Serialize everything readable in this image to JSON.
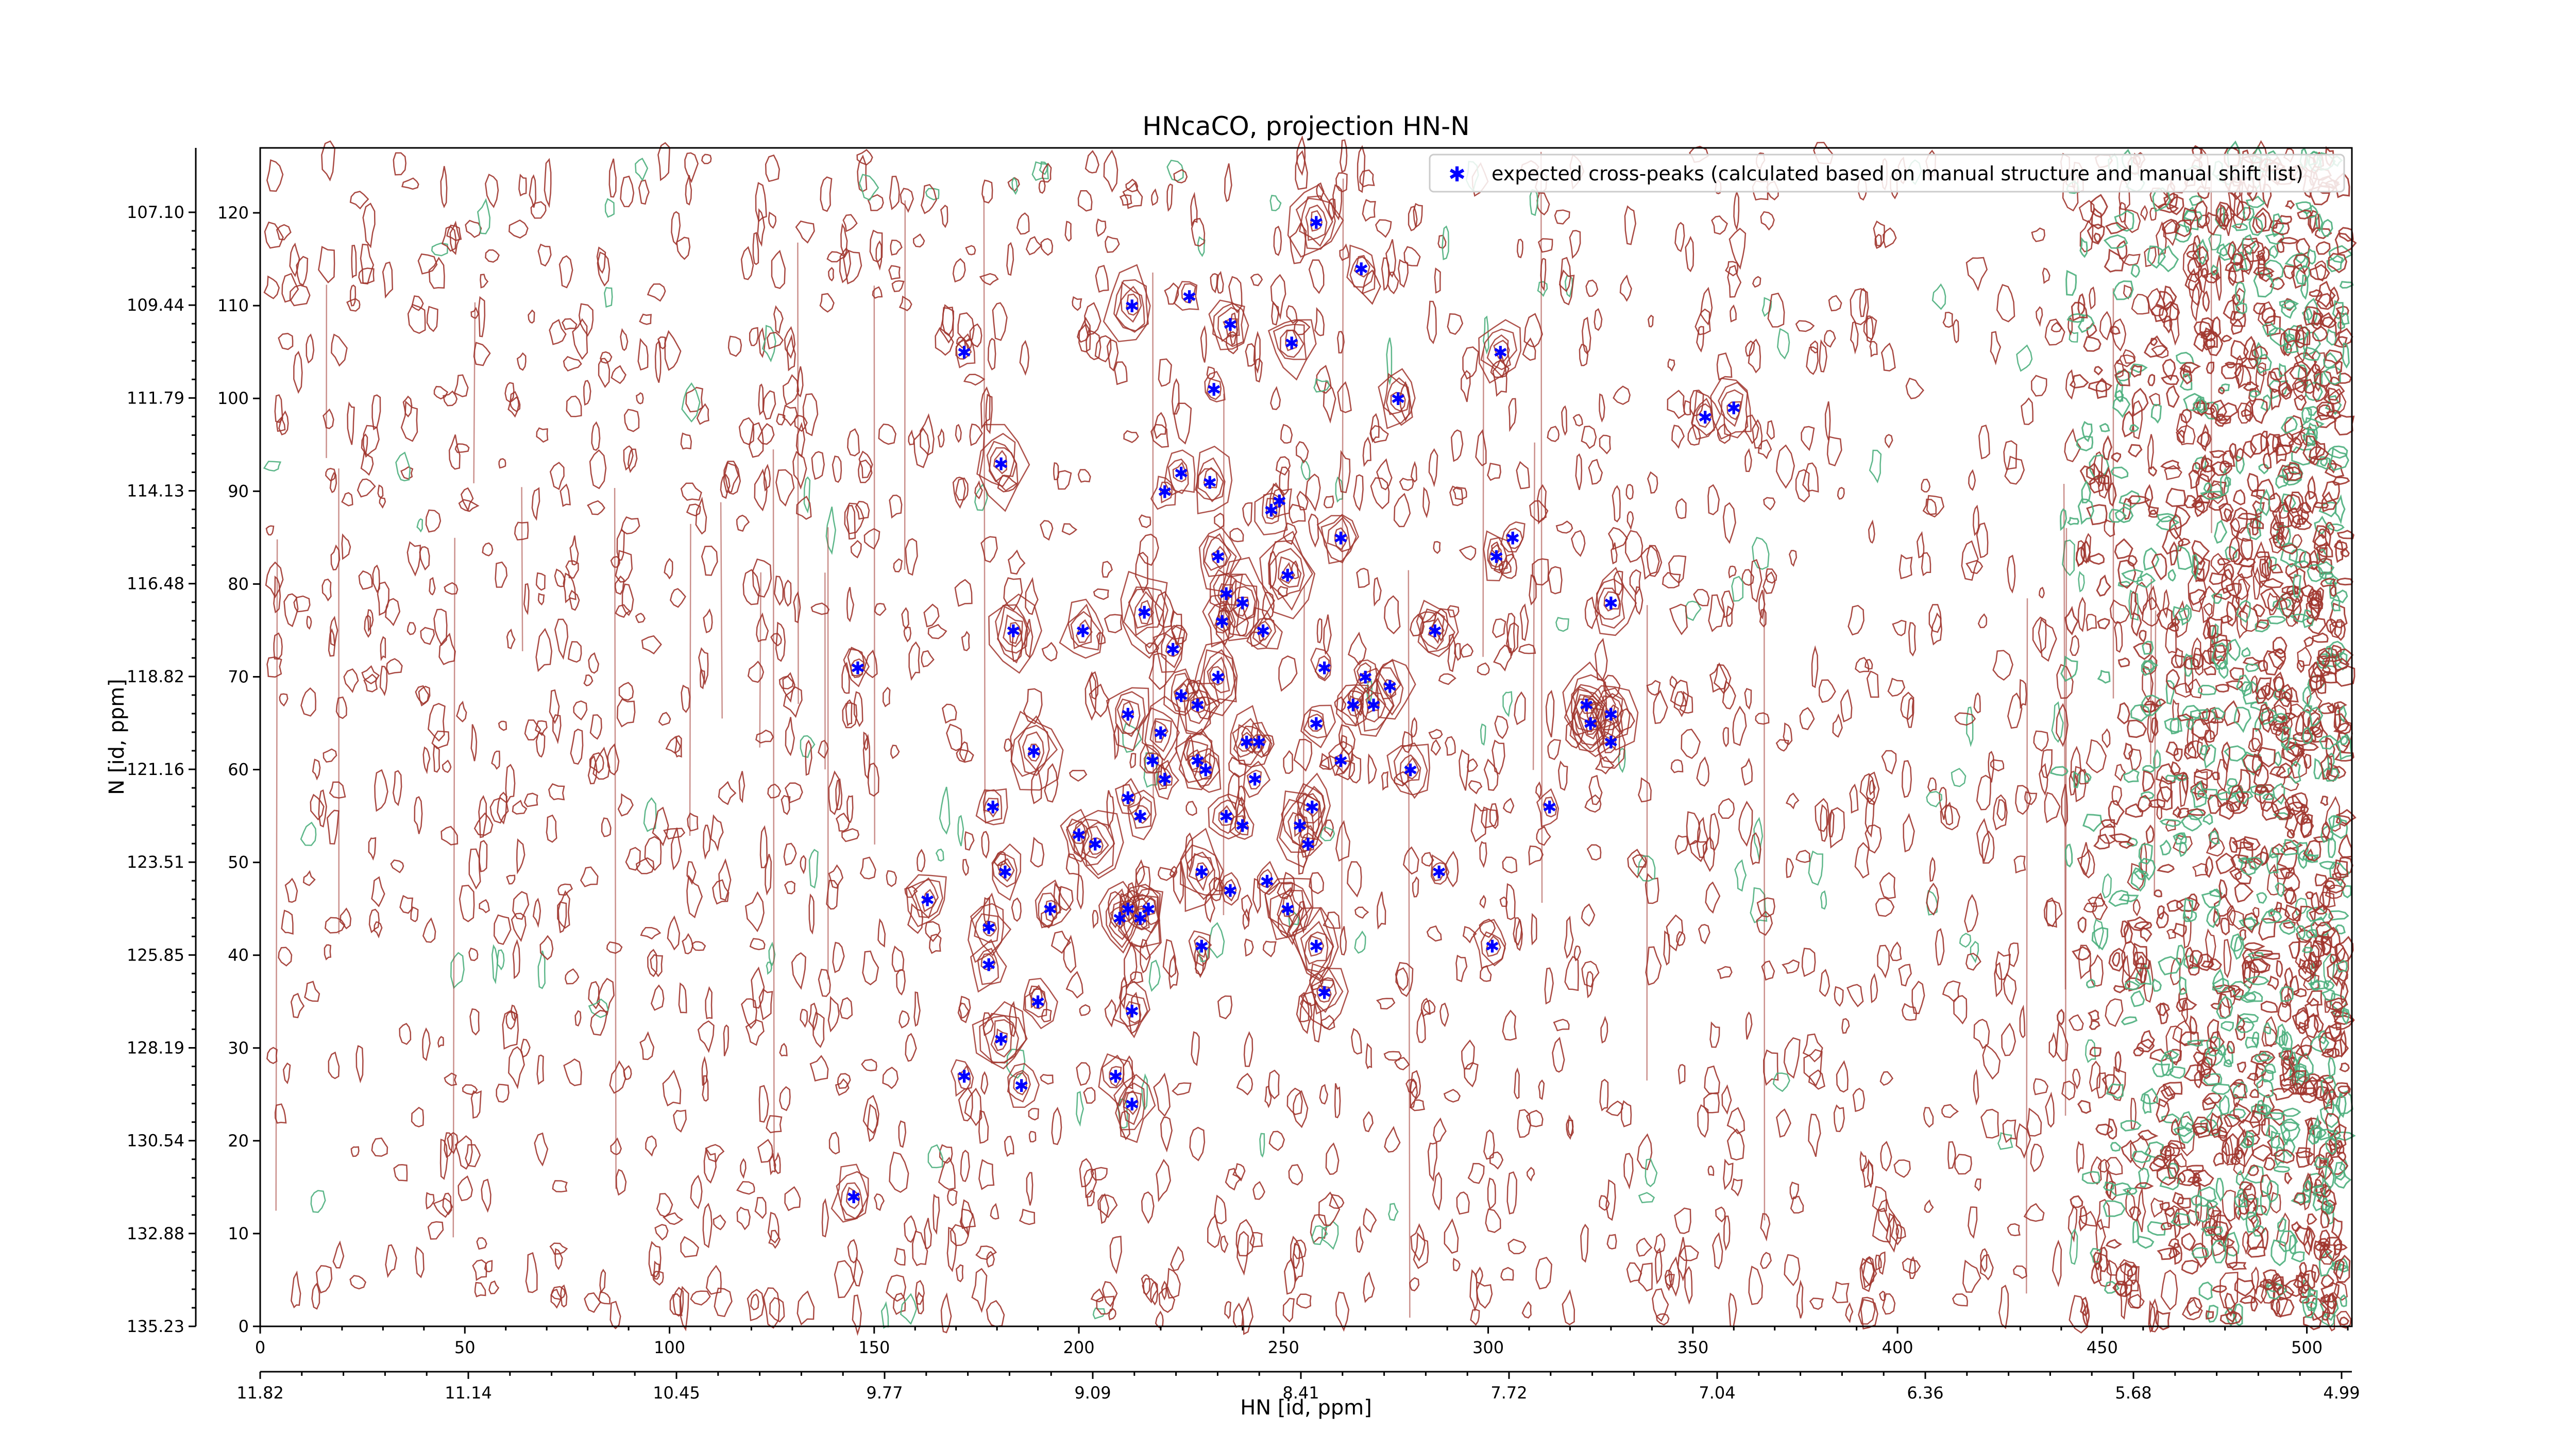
{
  "chart_data": {
    "type": "scatter",
    "title": "HNcaCO, projection HN-N",
    "xlabel": "HN [id, ppm]",
    "ylabel": "N [id, ppm]",
    "xlim": [
      0,
      511
    ],
    "ylim": [
      0,
      127
    ],
    "x_index_ticks": [
      0,
      50,
      100,
      150,
      200,
      250,
      300,
      350,
      400,
      450,
      500
    ],
    "y_index_ticks": [
      0,
      10,
      20,
      30,
      40,
      50,
      60,
      70,
      80,
      90,
      100,
      110,
      120
    ],
    "x_ppm_tick_labels": [
      "11.82",
      "11.14",
      "10.45",
      "9.77",
      "9.09",
      "8.41",
      "7.72",
      "7.04",
      "6.36",
      "5.68",
      "4.99"
    ],
    "y_ppm_tick_labels": [
      "107.10",
      "109.44",
      "111.79",
      "114.13",
      "116.48",
      "118.82",
      "121.16",
      "123.51",
      "125.85",
      "128.19",
      "130.54",
      "132.88",
      "135.23"
    ],
    "grid": false,
    "legend_position": "top-right",
    "background": "contour plot of spectrum (positive contours dark red, negative contours green)",
    "colors": {
      "peaks": "#0000ff",
      "contour_pos": "#a0352d",
      "contour_neg": "#4caf7d"
    },
    "series": [
      {
        "name": "expected cross-peaks (calculated based on manual structure and manual shift list)",
        "marker": "*",
        "points": [
          [
            258,
            119
          ],
          [
            269,
            114
          ],
          [
            213,
            110
          ],
          [
            227,
            111
          ],
          [
            237,
            108
          ],
          [
            172,
            105
          ],
          [
            252,
            106
          ],
          [
            303,
            105
          ],
          [
            233,
            101
          ],
          [
            278,
            100
          ],
          [
            353,
            98
          ],
          [
            360,
            99
          ],
          [
            181,
            93
          ],
          [
            225,
            92
          ],
          [
            232,
            91
          ],
          [
            221,
            90
          ],
          [
            249,
            89
          ],
          [
            247,
            88
          ],
          [
            264,
            85
          ],
          [
            306,
            85
          ],
          [
            302,
            83
          ],
          [
            234,
            83
          ],
          [
            236,
            79
          ],
          [
            240,
            78
          ],
          [
            251,
            81
          ],
          [
            330,
            78
          ],
          [
            184,
            75
          ],
          [
            201,
            75
          ],
          [
            216,
            77
          ],
          [
            235,
            76
          ],
          [
            245,
            75
          ],
          [
            287,
            75
          ],
          [
            146,
            71
          ],
          [
            223,
            73
          ],
          [
            260,
            71
          ],
          [
            234,
            70
          ],
          [
            225,
            68
          ],
          [
            229,
            67
          ],
          [
            270,
            70
          ],
          [
            276,
            69
          ],
          [
            267,
            67
          ],
          [
            272,
            67
          ],
          [
            324,
            67
          ],
          [
            212,
            66
          ],
          [
            325,
            65
          ],
          [
            330,
            66
          ],
          [
            220,
            64
          ],
          [
            258,
            65
          ],
          [
            241,
            63
          ],
          [
            244,
            63
          ],
          [
            330,
            63
          ],
          [
            189,
            62
          ],
          [
            218,
            61
          ],
          [
            229,
            61
          ],
          [
            264,
            61
          ],
          [
            231,
            60
          ],
          [
            221,
            59
          ],
          [
            243,
            59
          ],
          [
            281,
            60
          ],
          [
            212,
            57
          ],
          [
            179,
            56
          ],
          [
            257,
            56
          ],
          [
            215,
            55
          ],
          [
            236,
            55
          ],
          [
            240,
            54
          ],
          [
            254,
            54
          ],
          [
            256,
            52
          ],
          [
            315,
            56
          ],
          [
            200,
            53
          ],
          [
            204,
            52
          ],
          [
            182,
            49
          ],
          [
            230,
            49
          ],
          [
            246,
            48
          ],
          [
            288,
            49
          ],
          [
            163,
            46
          ],
          [
            193,
            45
          ],
          [
            212,
            45
          ],
          [
            217,
            45
          ],
          [
            237,
            47
          ],
          [
            251,
            45
          ],
          [
            210,
            44
          ],
          [
            215,
            44
          ],
          [
            178,
            43
          ],
          [
            230,
            41
          ],
          [
            258,
            41
          ],
          [
            301,
            41
          ],
          [
            178,
            39
          ],
          [
            260,
            36
          ],
          [
            190,
            35
          ],
          [
            213,
            34
          ],
          [
            181,
            31
          ],
          [
            172,
            27
          ],
          [
            186,
            26
          ],
          [
            209,
            27
          ],
          [
            213,
            24
          ],
          [
            145,
            14
          ]
        ]
      }
    ]
  }
}
